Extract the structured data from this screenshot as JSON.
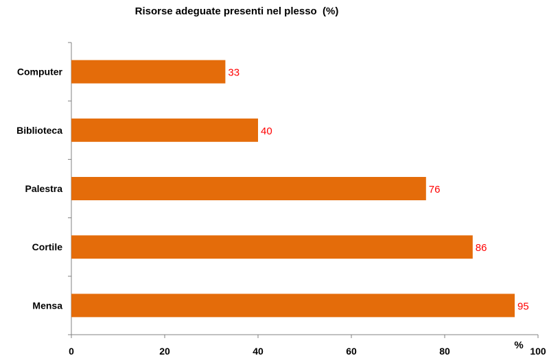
{
  "chart_data": {
    "type": "bar",
    "orientation": "horizontal",
    "title": "Risorse adeguate presenti nel plesso  (%)",
    "categories": [
      "Computer",
      "Biblioteca",
      "Palestra",
      "Cortile",
      "Mensa"
    ],
    "values": [
      33,
      40,
      76,
      86,
      95
    ],
    "data_labels": [
      "33",
      "40",
      "76",
      "86",
      "95"
    ],
    "xlim": [
      0,
      100
    ],
    "x_ticks": [
      "0",
      "20",
      "40",
      "60",
      "80",
      "100"
    ],
    "x_unit_label": "%",
    "grid": false,
    "legend": "none",
    "colors": {
      "bar": "#E46C0A",
      "data_label": "#FF0000",
      "axis": "#808080"
    }
  }
}
